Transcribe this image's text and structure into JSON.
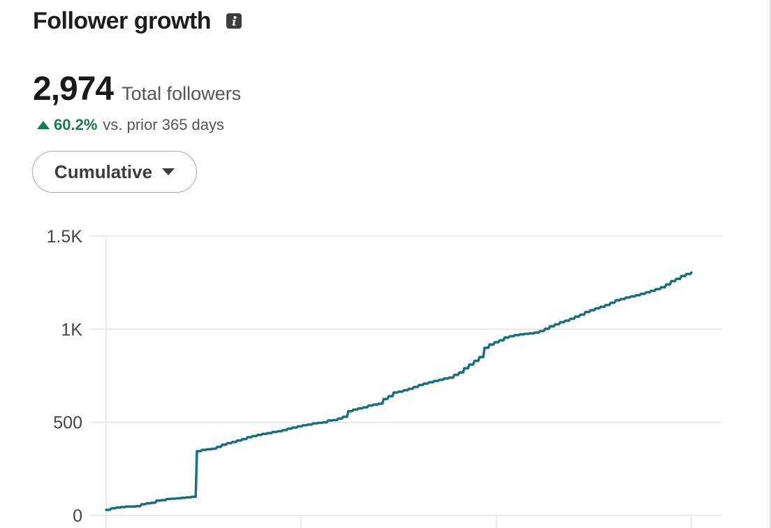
{
  "header": {
    "title": "Follower growth",
    "info_icon": "info-icon"
  },
  "summary": {
    "total_value": "2,974",
    "total_label": "Total followers",
    "change_value": "60.2%",
    "change_label": "vs. prior 365 days",
    "change_color": "#1a7a4f"
  },
  "dropdown": {
    "label": "Cumulative",
    "icon": "caret-down-icon"
  },
  "chart_data": {
    "type": "line",
    "title": "",
    "xlabel": "",
    "ylabel": "",
    "ylim": [
      0,
      1500
    ],
    "y_ticks": [
      {
        "value": 0,
        "label": "0"
      },
      {
        "value": 500,
        "label": "500"
      },
      {
        "value": 1000,
        "label": "1K"
      },
      {
        "value": 1500,
        "label": "1.5K"
      }
    ],
    "grid": true,
    "line_color": "#1b6f78",
    "series": [
      {
        "values": [
          30,
          38,
          42,
          45,
          48,
          48,
          50,
          60,
          65,
          68,
          80,
          82,
          88,
          90,
          92,
          95,
          97,
          100,
          345,
          352,
          355,
          358,
          368,
          380,
          388,
          394,
          402,
          410,
          420,
          426,
          432,
          438,
          442,
          448,
          452,
          458,
          466,
          472,
          478,
          484,
          488,
          494,
          497,
          500,
          510,
          512,
          520,
          530,
          560,
          568,
          575,
          580,
          590,
          595,
          600,
          625,
          640,
          660,
          665,
          672,
          680,
          690,
          700,
          708,
          715,
          722,
          728,
          735,
          740,
          755,
          768,
          790,
          810,
          830,
          850,
          900,
          918,
          930,
          940,
          955,
          962,
          968,
          972,
          975,
          978,
          982,
          990,
          1002,
          1016,
          1026,
          1038,
          1046,
          1056,
          1068,
          1078,
          1092,
          1102,
          1112,
          1120,
          1130,
          1142,
          1155,
          1162,
          1170,
          1176,
          1182,
          1190,
          1198,
          1206,
          1215,
          1225,
          1240,
          1258,
          1270,
          1286,
          1296,
          1304
        ]
      }
    ]
  }
}
